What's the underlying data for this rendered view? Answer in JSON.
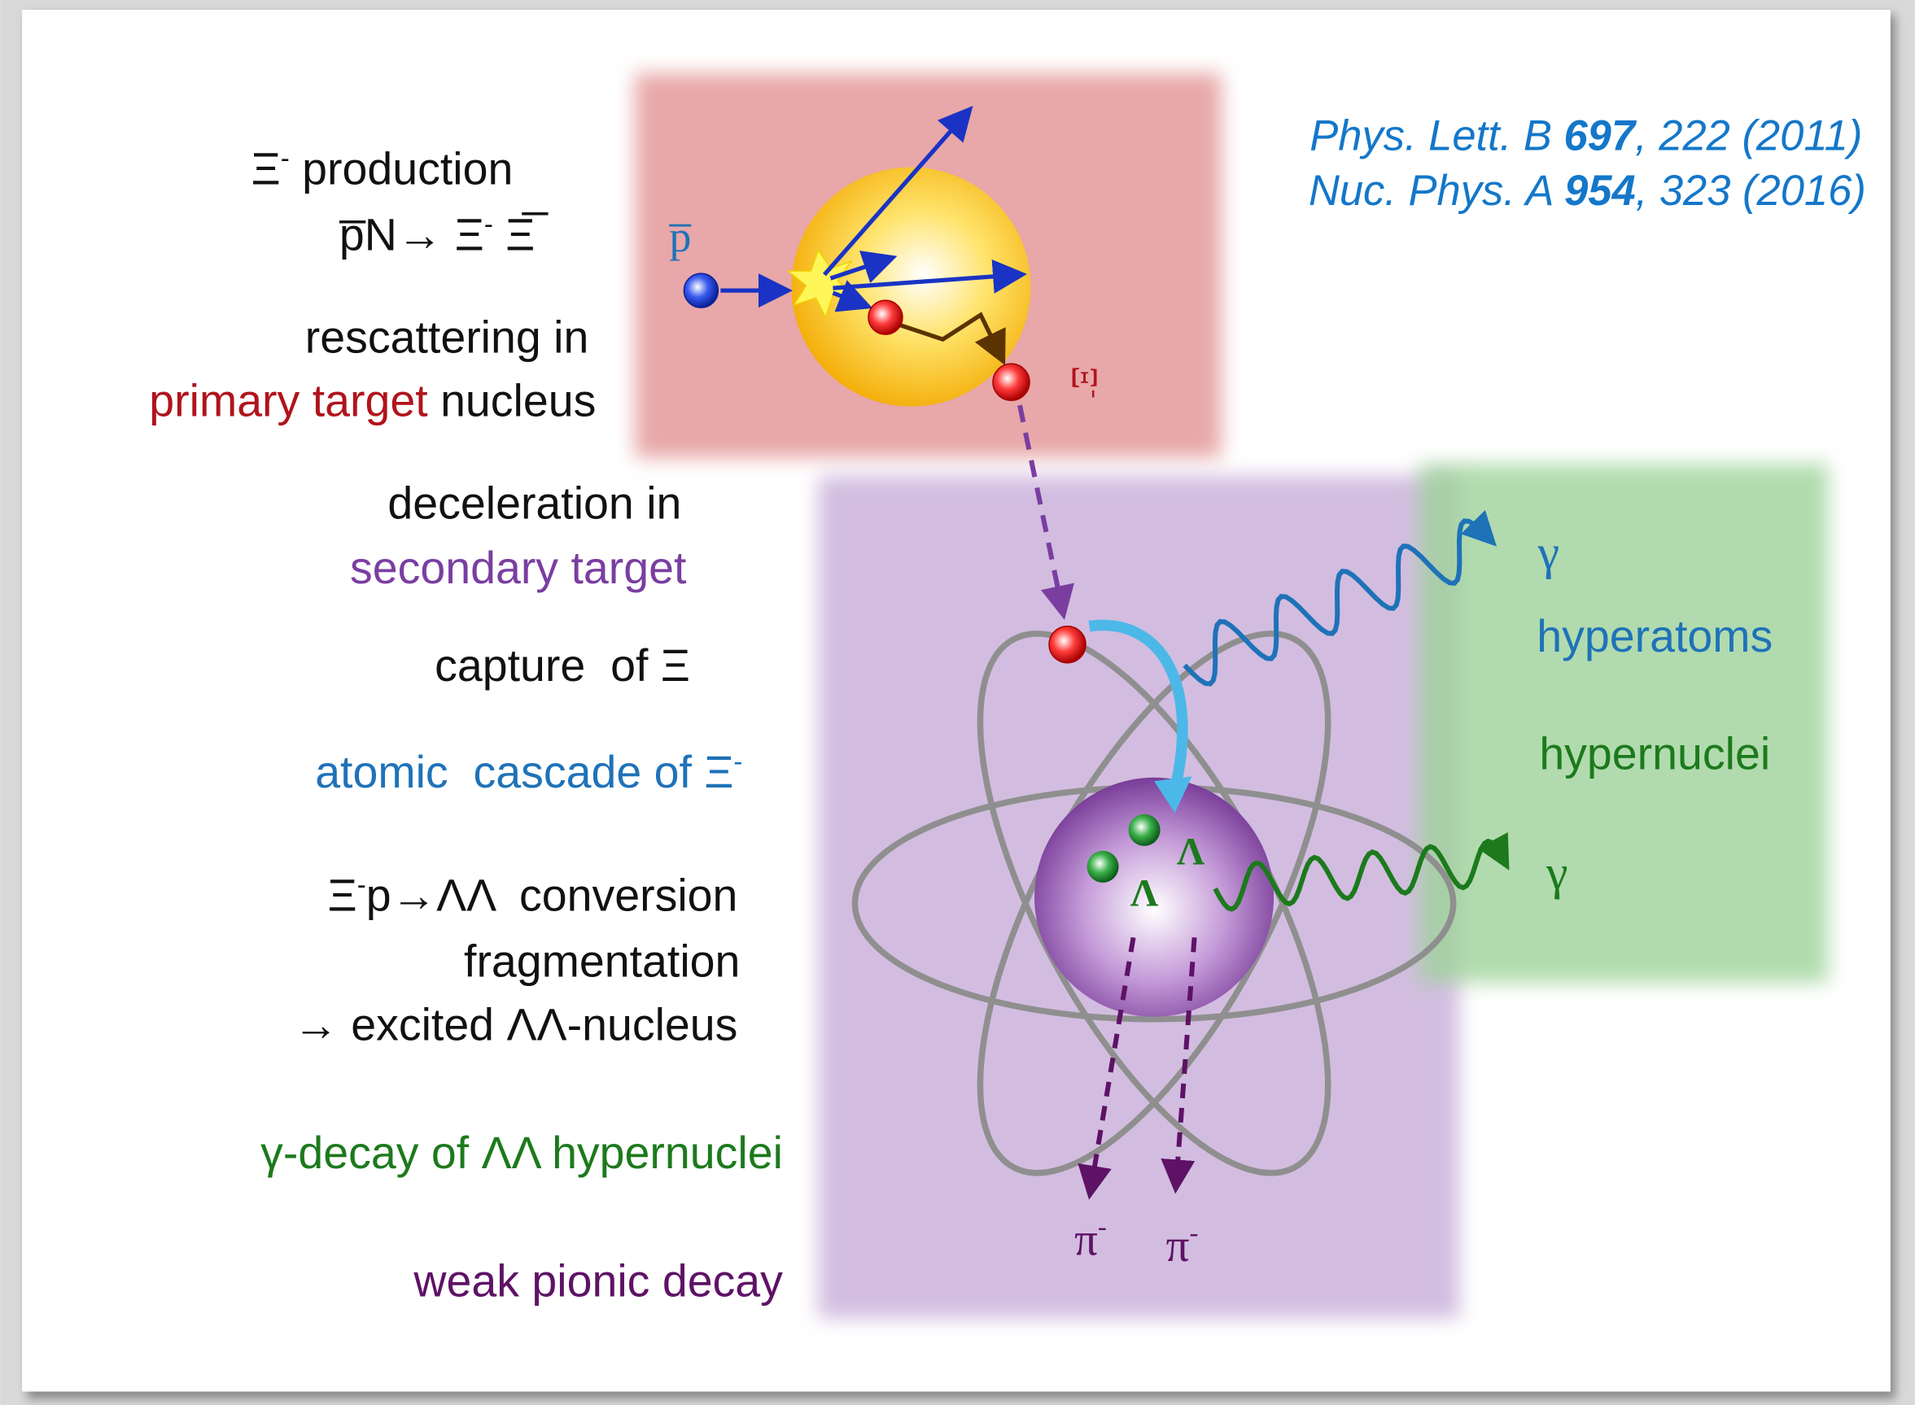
{
  "steps": [
    [
      [
        "Ξ",
        "-",
        " production"
      ],
      [
        "p̅N→ Ξ",
        "-",
        " Ξ̅"
      ]
    ],
    [
      "rescattering in",
      [
        "primary target",
        " nucleus"
      ]
    ],
    [
      "deceleration in",
      "secondary target"
    ],
    [
      "capture  of Ξ"
    ],
    [
      [
        "atomic  cascade of Ξ",
        "-"
      ]
    ],
    [
      [
        "Ξ",
        "-",
        "p→ΛΛ  conversion"
      ],
      "fragmentation",
      "→ excited ΛΛ-nucleus"
    ],
    [
      "γ-decay of ΛΛ hypernuclei"
    ],
    [
      "weak pionic decay"
    ]
  ],
  "references": [
    {
      "journal": "Phys. Lett. B ",
      "volume": "697",
      "rest": ", 222 (2011)"
    },
    {
      "journal": "Nuc. Phys. A ",
      "volume": "954",
      "rest": ", 323 (2016)"
    }
  ],
  "labels": {
    "antiproton": "p̅",
    "xi": [
      "Ξ",
      "-"
    ],
    "gamma_top": "γ",
    "hyperatoms": "hyperatoms",
    "hypernuclei": "hypernuclei",
    "gamma_bottom": "γ",
    "lambda": [
      "Λ",
      "Λ"
    ],
    "pion": [
      [
        "π",
        "-"
      ],
      [
        "π",
        "-"
      ]
    ]
  }
}
